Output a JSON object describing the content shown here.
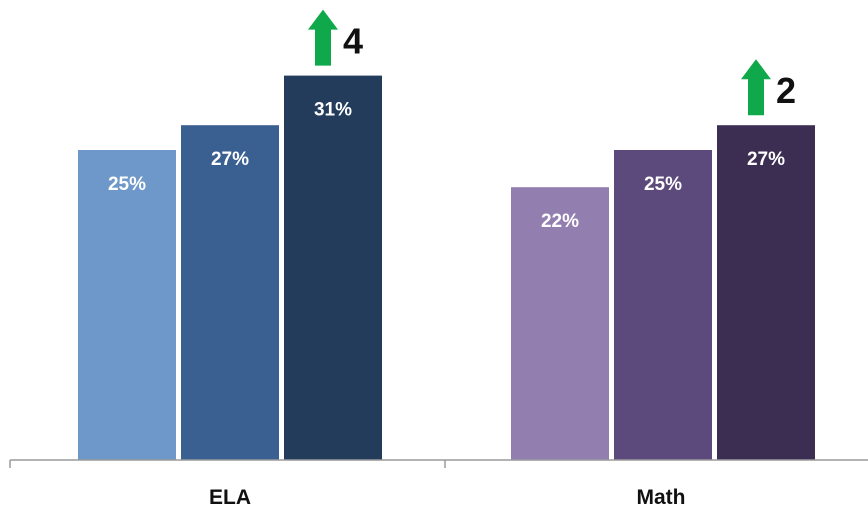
{
  "chart_data": {
    "type": "bar",
    "categories": [
      "ELA",
      "Math"
    ],
    "groups": [
      {
        "category": "ELA",
        "values": [
          25,
          27,
          31
        ],
        "labels": [
          "25%",
          "27%",
          "31%"
        ],
        "colors": [
          "#6e98c9",
          "#3a5f91",
          "#233c5c"
        ],
        "gain": {
          "value": "4",
          "arrow_color": "#0fa84a"
        }
      },
      {
        "category": "Math",
        "values": [
          22,
          25,
          27
        ],
        "labels": [
          "22%",
          "25%",
          "27%"
        ],
        "colors": [
          "#937eb0",
          "#5d4a7c",
          "#3c2e52"
        ],
        "gain": {
          "value": "2",
          "arrow_color": "#0fa84a"
        }
      }
    ],
    "value_unit": "%",
    "y_axis_visible": false,
    "grid": false,
    "legend": "none",
    "title": "",
    "xlabel": "",
    "ylabel": ""
  }
}
